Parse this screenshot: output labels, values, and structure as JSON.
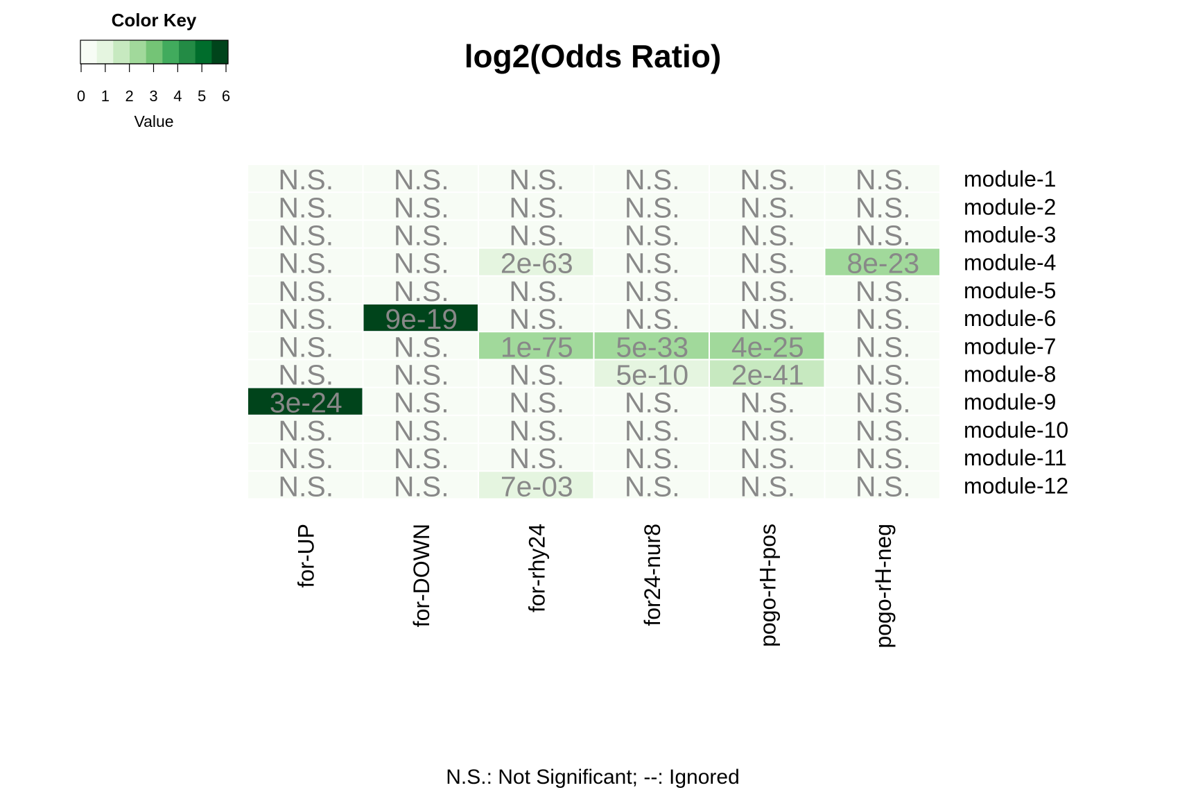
{
  "chart_data": {
    "type": "heatmap",
    "title": "log2(Odds Ratio)",
    "columns": [
      "for-UP",
      "for-DOWN",
      "for-rhy24",
      "for24-nur8",
      "pogo-rH-pos",
      "pogo-rH-neg"
    ],
    "rows": [
      "module-1",
      "module-2",
      "module-3",
      "module-4",
      "module-5",
      "module-6",
      "module-7",
      "module-8",
      "module-9",
      "module-10",
      "module-11",
      "module-12"
    ],
    "values": [
      [
        0,
        0,
        0,
        0,
        0,
        0
      ],
      [
        0,
        0,
        0,
        0,
        0,
        0
      ],
      [
        0,
        0,
        0,
        0,
        0,
        0
      ],
      [
        0,
        0,
        1,
        0,
        0,
        2
      ],
      [
        0,
        0,
        0,
        0,
        0,
        0
      ],
      [
        0,
        5.5,
        0,
        0,
        0,
        0
      ],
      [
        0,
        0,
        2.5,
        2.5,
        2.5,
        0
      ],
      [
        0,
        0,
        0,
        1,
        1.5,
        0
      ],
      [
        6,
        0,
        0,
        0,
        0,
        0
      ],
      [
        0,
        0,
        0,
        0,
        0,
        0
      ],
      [
        0,
        0,
        0,
        0,
        0,
        0
      ],
      [
        0,
        0,
        1,
        0,
        0,
        0
      ]
    ],
    "cell_labels": [
      [
        "N.S.",
        "N.S.",
        "N.S.",
        "N.S.",
        "N.S.",
        "N.S."
      ],
      [
        "N.S.",
        "N.S.",
        "N.S.",
        "N.S.",
        "N.S.",
        "N.S."
      ],
      [
        "N.S.",
        "N.S.",
        "N.S.",
        "N.S.",
        "N.S.",
        "N.S."
      ],
      [
        "N.S.",
        "N.S.",
        "2e-63",
        "N.S.",
        "N.S.",
        "8e-23"
      ],
      [
        "N.S.",
        "N.S.",
        "N.S.",
        "N.S.",
        "N.S.",
        "N.S."
      ],
      [
        "N.S.",
        "9e-19",
        "N.S.",
        "N.S.",
        "N.S.",
        "N.S."
      ],
      [
        "N.S.",
        "N.S.",
        "1e-75",
        "5e-33",
        "4e-25",
        "N.S."
      ],
      [
        "N.S.",
        "N.S.",
        "N.S.",
        "5e-10",
        "2e-41",
        "N.S."
      ],
      [
        "3e-24",
        "N.S.",
        "N.S.",
        "N.S.",
        "N.S.",
        "N.S."
      ],
      [
        "N.S.",
        "N.S.",
        "N.S.",
        "N.S.",
        "N.S.",
        "N.S."
      ],
      [
        "N.S.",
        "N.S.",
        "N.S.",
        "N.S.",
        "N.S.",
        "N.S."
      ],
      [
        "N.S.",
        "N.S.",
        "7e-03",
        "N.S.",
        "N.S.",
        "N.S."
      ]
    ],
    "color_key": {
      "title": "Color Key",
      "xlabel": "Value",
      "range": [
        0,
        6
      ],
      "ticks": [
        "0",
        "1",
        "2",
        "3",
        "4",
        "5",
        "6"
      ],
      "colors": [
        "#f7fcf5",
        "#e5f5e0",
        "#c7e9c0",
        "#a1d99b",
        "#74c476",
        "#41ab5d",
        "#238b45",
        "#006d2c",
        "#00441b"
      ]
    },
    "footnote": "N.S.: Not Significant; --: Ignored",
    "cell_text_color": "#888888"
  }
}
